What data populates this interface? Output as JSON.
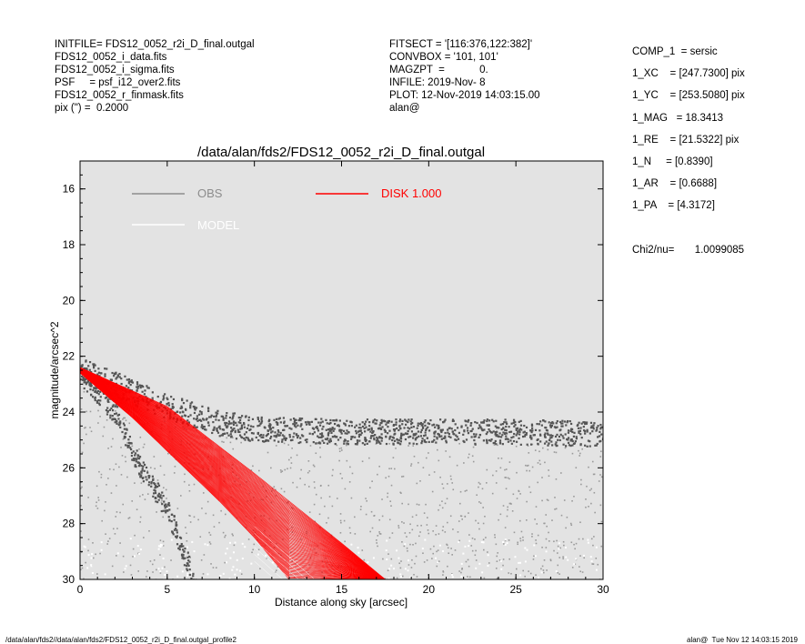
{
  "header_left": [
    "INITFILE= FDS12_0052_r2i_D_final.outgal",
    "FDS12_0052_i_data.fits",
    "FDS12_0052_i_sigma.fits",
    "PSF     = psf_i12_over2.fits",
    "FDS12_0052_r_finmask.fits",
    "pix (\") =  0.2000"
  ],
  "header_mid": [
    "FITSECT = '[116:376,122:382]'",
    "CONVBOX = '101, 101'",
    "MAGZPT  =            0.",
    "INFILE: 2019-Nov- 8",
    "PLOT: 12-Nov-2019 14:03:15.00",
    "alan@"
  ],
  "header_right": [
    "COMP_1  = sersic",
    "1_XC    = [247.7300] pix",
    "1_YC    = [253.5080] pix",
    "1_MAG   = 18.3413",
    "1_RE    = [21.5322] pix",
    "1_N     = [0.8390]",
    "1_AR    = [0.6688]",
    "1_PA    = [4.3172]"
  ],
  "chi2": "Chi2/nu=       1.0099085",
  "footer_left": "/data/alan/fds2//data/alan/fds2/FDS12_0052_r2i_D_final.outgal_profile2",
  "footer_right": "alan@  Tue Nov 12 14:03:15 2019",
  "chart_data": {
    "type": "scatter",
    "title": "/data/alan/fds2/FDS12_0052_r2i_D_final.outgal",
    "xlabel": "Distance along sky [arcsec]",
    "ylabel": "magnitude/arcsec^2",
    "xlim": [
      0,
      30
    ],
    "ylim": [
      30,
      15
    ],
    "y_inverted": true,
    "xticks": [
      0,
      5,
      10,
      15,
      20,
      25,
      30
    ],
    "yticks": [
      16,
      18,
      20,
      22,
      24,
      26,
      28,
      30
    ],
    "background": "#e3e3e3",
    "grid": false,
    "legend": [
      {
        "label": "OBS",
        "color": "#8c8c8c"
      },
      {
        "label": "MODEL",
        "color": "#ffffff"
      },
      {
        "label": "DISK  1.000",
        "color": "#ff0000"
      }
    ],
    "series": [
      {
        "name": "OBS",
        "color": "#555555",
        "points_desc": "dense dark band",
        "upper_envelope": [
          [
            0,
            22.3
          ],
          [
            2,
            22.8
          ],
          [
            5,
            23.6
          ],
          [
            8,
            24.2
          ],
          [
            10,
            24.4
          ],
          [
            15,
            24.5
          ],
          [
            20,
            24.5
          ],
          [
            25,
            24.5
          ],
          [
            30,
            24.6
          ]
        ],
        "lower_branch": [
          [
            0,
            22.6
          ],
          [
            2,
            24.0
          ],
          [
            3,
            25.5
          ],
          [
            5,
            27.5
          ],
          [
            6.5,
            30
          ]
        ]
      },
      {
        "name": "MODEL",
        "color": "#ffffff",
        "envelope": [
          [
            0,
            22.5
          ],
          [
            5,
            25.5
          ],
          [
            10,
            28.0
          ],
          [
            15,
            30
          ]
        ]
      },
      {
        "name": "DISK  1.000",
        "color": "#ff0000",
        "upper_edge": [
          [
            0,
            22.4
          ],
          [
            5,
            23.8
          ],
          [
            10,
            26.2
          ],
          [
            15,
            28.7
          ],
          [
            17.5,
            30
          ]
        ],
        "lower_edge": [
          [
            0,
            22.6
          ],
          [
            3,
            24.2
          ],
          [
            5,
            25.4
          ],
          [
            8,
            27.2
          ],
          [
            10,
            28.5
          ],
          [
            12,
            30
          ]
        ]
      }
    ]
  }
}
